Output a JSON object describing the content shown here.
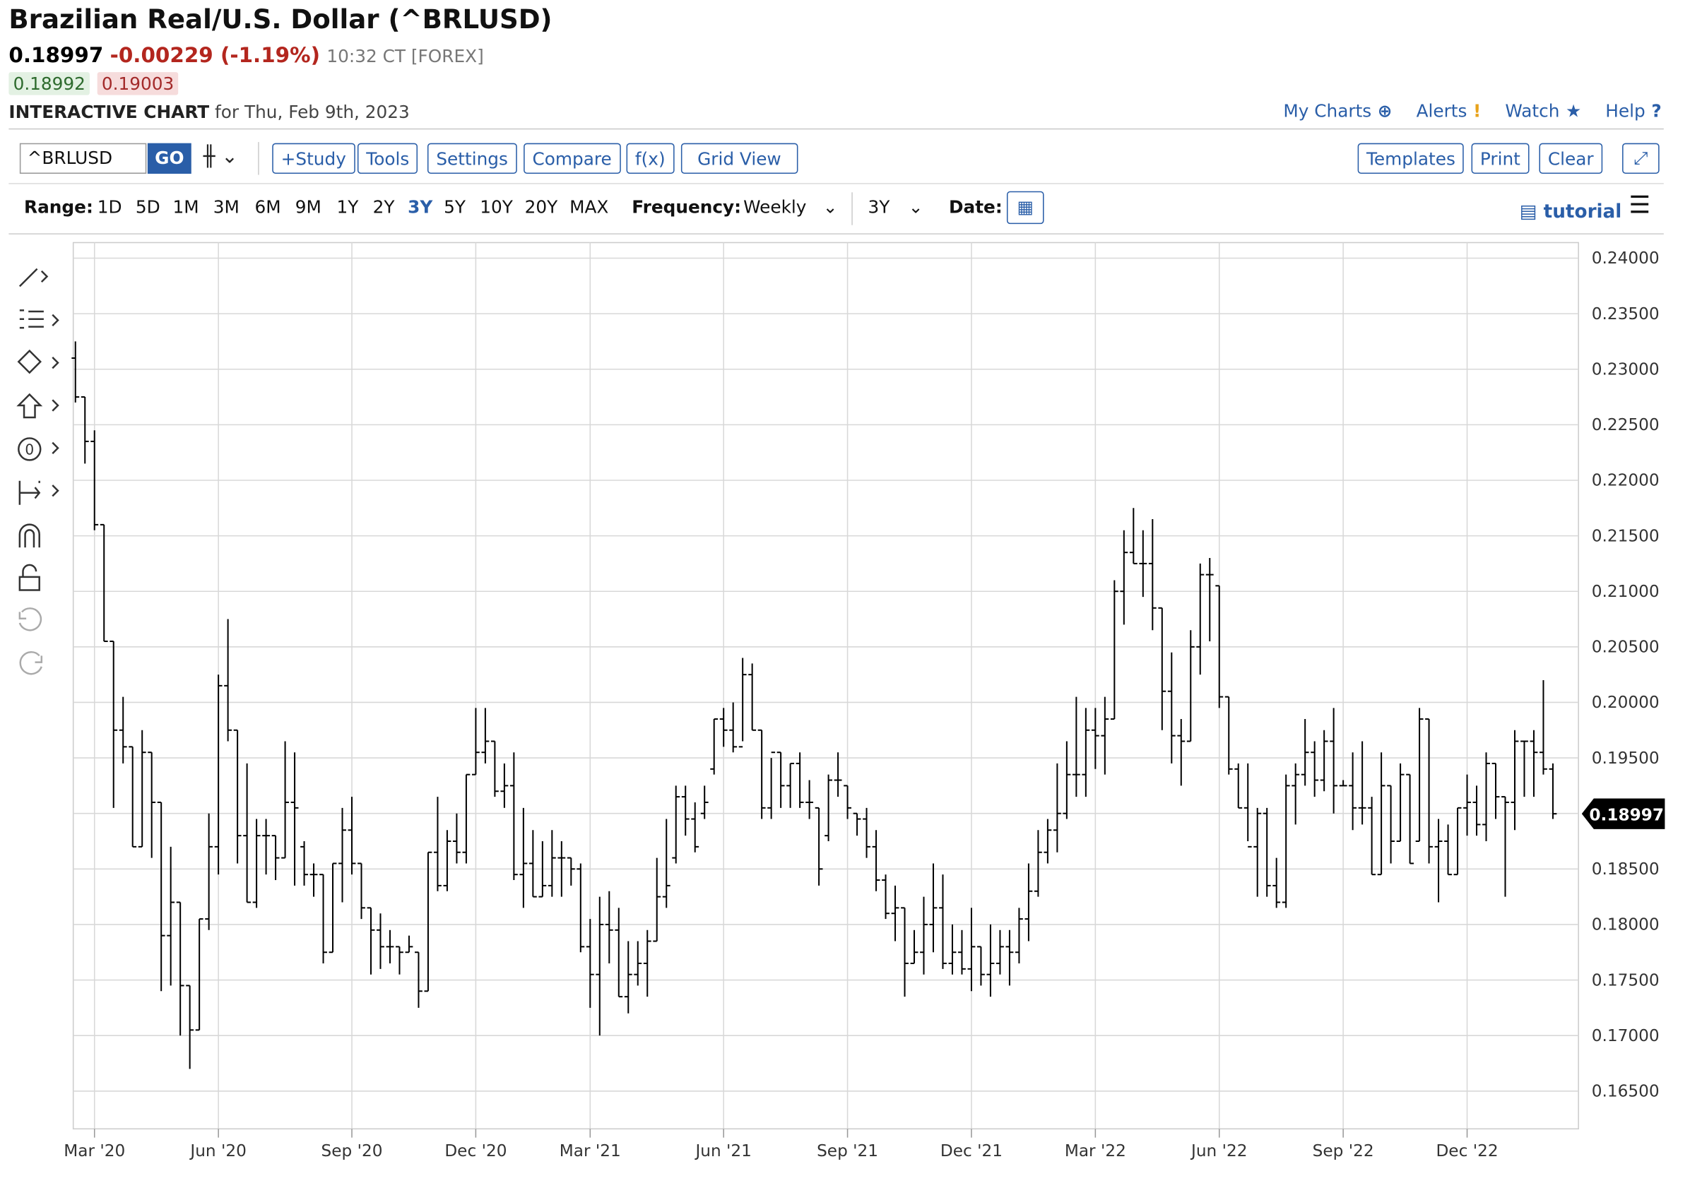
{
  "header": {
    "title": "Brazilian Real/U.S. Dollar (^BRLUSD)",
    "last": "0.18997",
    "change": "-0.00229 (-1.19%)",
    "time": "10:32 CT [FOREX]",
    "bid": "0.18992",
    "ask": "0.19003",
    "chart_label": "INTERACTIVE CHART",
    "chart_date": "for Thu, Feb 9th, 2023"
  },
  "nav": [
    "My Charts",
    "Alerts",
    "Watch",
    "Help"
  ],
  "toolbar": {
    "symbol": "^BRLUSD",
    "go": "GO",
    "buttons": [
      "+Study",
      "Tools",
      "Settings",
      "Compare",
      "f(x)",
      "Grid View"
    ],
    "right_buttons": [
      "Templates",
      "Print",
      "Clear"
    ]
  },
  "range_bar": {
    "range_label": "Range:",
    "ranges": [
      "1D",
      "5D",
      "1M",
      "3M",
      "6M",
      "9M",
      "1Y",
      "2Y",
      "3Y",
      "5Y",
      "10Y",
      "20Y",
      "MAX"
    ],
    "selected_range": 8,
    "frequency_label": "Frequency:",
    "frequency": "Weekly",
    "period": "3Y",
    "date_label": "Date:",
    "tutorial": "tutorial"
  },
  "chart_data": {
    "type": "ohlc",
    "color": "#000000",
    "grid": true,
    "categories": [
      null,
      null,
      "Mar '20",
      null,
      null,
      null,
      null,
      null,
      null,
      null,
      null,
      null,
      null,
      null,
      null,
      "Jun '20",
      null,
      null,
      null,
      null,
      null,
      null,
      null,
      null,
      null,
      null,
      null,
      null,
      null,
      "Sep '20",
      null,
      null,
      null,
      null,
      null,
      null,
      null,
      null,
      null,
      null,
      null,
      null,
      "Dec '20",
      null,
      null,
      null,
      null,
      null,
      null,
      null,
      null,
      null,
      null,
      null,
      "Mar '21",
      null,
      null,
      null,
      null,
      null,
      null,
      null,
      null,
      null,
      null,
      null,
      null,
      null,
      "Jun '21",
      null,
      null,
      null,
      null,
      null,
      null,
      null,
      null,
      null,
      null,
      null,
      null,
      "Sep '21",
      null,
      null,
      null,
      null,
      null,
      null,
      null,
      null,
      null,
      null,
      null,
      null,
      "Dec '21",
      null,
      null,
      null,
      null,
      null,
      null,
      null,
      null,
      null,
      null,
      null,
      null,
      "Mar '22",
      null,
      null,
      null,
      null,
      null,
      null,
      null,
      null,
      null,
      null,
      null,
      null,
      "Jun '22",
      null,
      null,
      null,
      null,
      null,
      null,
      null,
      null,
      null,
      null,
      null,
      null,
      "Sep '22",
      null,
      null,
      null,
      null,
      null,
      null,
      null,
      null,
      null,
      null,
      null,
      null,
      "Dec '22",
      null,
      null,
      null,
      null,
      null,
      null,
      null,
      null,
      null
    ],
    "open": [
      0.231,
      0.2275,
      0.2235,
      0.216,
      0.2055,
      0.1975,
      0.196,
      0.187,
      0.1955,
      0.191,
      0.179,
      0.182,
      0.1745,
      0.1705,
      0.1805,
      0.187,
      0.2015,
      0.1975,
      0.188,
      0.182,
      0.188,
      0.188,
      0.186,
      0.191,
      0.187,
      0.1845,
      0.1845,
      0.1775,
      0.1855,
      0.1885,
      0.1855,
      0.1815,
      0.1795,
      0.178,
      0.178,
      0.1775,
      0.1775,
      0.174,
      0.1865,
      0.1835,
      0.1875,
      0.1865,
      0.1935,
      0.1955,
      0.1965,
      0.192,
      0.1925,
      0.1845,
      0.1855,
      0.1825,
      0.1835,
      0.186,
      0.186,
      0.185,
      0.178,
      0.1755,
      0.18,
      0.1795,
      0.1735,
      0.1755,
      0.1765,
      0.1785,
      0.1825,
      0.186,
      0.1915,
      0.1895,
      0.19,
      0.194,
      0.1985,
      0.1975,
      0.196,
      0.2025,
      0.1975,
      0.1905,
      0.1955,
      0.1925,
      0.1945,
      0.191,
      0.1905,
      0.188,
      0.193,
      0.1925,
      0.19,
      0.1895,
      0.187,
      0.184,
      0.181,
      0.1815,
      0.1765,
      0.1775,
      0.18,
      0.1815,
      0.1765,
      0.1775,
      0.176,
      0.178,
      0.1755,
      0.1765,
      0.178,
      0.1775,
      0.1805,
      0.183,
      0.1865,
      0.1885,
      0.19,
      0.1935,
      0.1935,
      0.1975,
      0.197,
      0.1985,
      0.21,
      0.2135,
      0.2125,
      0.2125,
      0.2085,
      0.201,
      0.197,
      0.1965,
      0.205,
      0.2115,
      0.2105,
      0.2005,
      0.194,
      0.1905,
      0.187,
      0.19,
      0.1835,
      0.182,
      0.1925,
      0.1935,
      0.1955,
      0.193,
      0.1965,
      0.1925,
      0.1925,
      0.1905,
      0.1905,
      0.1845,
      0.1925,
      0.1875,
      0.1935,
      0.1875,
      0.1985,
      0.187,
      0.1875,
      0.1845,
      0.1905,
      0.191,
      0.189,
      0.1945,
      0.1915,
      0.191,
      0.1965,
      0.1965,
      0.1955,
      0.194
    ],
    "high": [
      0.2325,
      0.2275,
      0.2245,
      0.216,
      0.2055,
      0.2005,
      0.196,
      0.1975,
      0.1955,
      0.191,
      0.187,
      0.182,
      0.1745,
      0.1805,
      0.19,
      0.2025,
      0.2075,
      0.1975,
      0.1945,
      0.1895,
      0.1895,
      0.188,
      0.1965,
      0.1955,
      0.1875,
      0.1855,
      0.1845,
      0.1855,
      0.1905,
      0.1915,
      0.1855,
      0.1815,
      0.181,
      0.1795,
      0.178,
      0.179,
      0.1775,
      0.1865,
      0.1915,
      0.1885,
      0.19,
      0.1935,
      0.1995,
      0.1995,
      0.1965,
      0.1945,
      0.1955,
      0.1905,
      0.1885,
      0.1875,
      0.1885,
      0.1875,
      0.186,
      0.1855,
      0.1805,
      0.1825,
      0.183,
      0.1815,
      0.1785,
      0.1785,
      0.1795,
      0.186,
      0.1895,
      0.1925,
      0.1925,
      0.191,
      0.1925,
      0.1985,
      0.1995,
      0.2,
      0.204,
      0.2035,
      0.1975,
      0.195,
      0.1955,
      0.1945,
      0.1955,
      0.193,
      0.1905,
      0.1935,
      0.1955,
      0.1925,
      0.19,
      0.1905,
      0.1885,
      0.1845,
      0.1835,
      0.1815,
      0.1795,
      0.1825,
      0.1855,
      0.1845,
      0.18,
      0.1795,
      0.1815,
      0.178,
      0.18,
      0.1795,
      0.1795,
      0.1815,
      0.1855,
      0.1885,
      0.1895,
      0.1945,
      0.1965,
      0.2005,
      0.1995,
      0.1995,
      0.2005,
      0.211,
      0.2155,
      0.2175,
      0.2155,
      0.2165,
      0.2085,
      0.2045,
      0.1985,
      0.2065,
      0.2125,
      0.213,
      0.2105,
      0.2005,
      0.1945,
      0.1945,
      0.1905,
      0.1905,
      0.186,
      0.1935,
      0.1945,
      0.1985,
      0.1965,
      0.1975,
      0.1995,
      0.193,
      0.1955,
      0.1965,
      0.1915,
      0.1955,
      0.1925,
      0.1945,
      0.1935,
      0.1995,
      0.1985,
      0.1895,
      0.189,
      0.1905,
      0.1935,
      0.1925,
      0.1955,
      0.1945,
      0.1915,
      0.1975,
      0.1965,
      0.1975,
      0.202,
      0.1945
    ],
    "low": [
      0.227,
      0.2215,
      0.2155,
      0.2055,
      0.1905,
      0.1945,
      0.187,
      0.187,
      0.186,
      0.174,
      0.1745,
      0.17,
      0.167,
      0.1705,
      0.1795,
      0.1845,
      0.1965,
      0.1855,
      0.182,
      0.1815,
      0.1845,
      0.184,
      0.186,
      0.1835,
      0.1835,
      0.1825,
      0.1765,
      0.1775,
      0.182,
      0.1845,
      0.1805,
      0.1755,
      0.176,
      0.1765,
      0.1755,
      0.1775,
      0.1725,
      0.174,
      0.183,
      0.183,
      0.1855,
      0.1855,
      0.1935,
      0.1945,
      0.1915,
      0.1905,
      0.184,
      0.1815,
      0.1825,
      0.1825,
      0.1825,
      0.1825,
      0.1835,
      0.1775,
      0.1725,
      0.17,
      0.1765,
      0.1735,
      0.172,
      0.1745,
      0.1735,
      0.1785,
      0.1815,
      0.1855,
      0.188,
      0.1865,
      0.1895,
      0.1935,
      0.196,
      0.1955,
      0.1965,
      0.1975,
      0.1895,
      0.1895,
      0.1905,
      0.1905,
      0.1905,
      0.1895,
      0.1835,
      0.1875,
      0.1915,
      0.1895,
      0.188,
      0.186,
      0.183,
      0.1805,
      0.1785,
      0.1735,
      0.1765,
      0.1755,
      0.1775,
      0.176,
      0.1755,
      0.1755,
      0.174,
      0.1745,
      0.1735,
      0.1755,
      0.1745,
      0.1765,
      0.1785,
      0.1825,
      0.1855,
      0.1865,
      0.1895,
      0.1915,
      0.1915,
      0.194,
      0.1935,
      0.1985,
      0.207,
      0.2125,
      0.2095,
      0.2065,
      0.1975,
      0.1945,
      0.1925,
      0.1965,
      0.2025,
      0.2055,
      0.1995,
      0.1935,
      0.1905,
      0.1875,
      0.1825,
      0.1825,
      0.1815,
      0.1815,
      0.189,
      0.1925,
      0.1915,
      0.192,
      0.19,
      0.1925,
      0.1885,
      0.189,
      0.1845,
      0.1845,
      0.1855,
      0.1875,
      0.1855,
      0.1875,
      0.1855,
      0.182,
      0.1845,
      0.1845,
      0.188,
      0.188,
      0.1875,
      0.1895,
      0.1825,
      0.1885,
      0.1915,
      0.1915,
      0.1935,
      0.1895
    ],
    "close": [
      0.2275,
      0.2235,
      0.216,
      0.2055,
      0.1975,
      0.196,
      0.187,
      0.1955,
      0.191,
      0.179,
      0.182,
      0.1745,
      0.1705,
      0.1805,
      0.187,
      0.2015,
      0.1975,
      0.188,
      0.182,
      0.188,
      0.188,
      0.186,
      0.191,
      0.1905,
      0.1845,
      0.1845,
      0.1775,
      0.1855,
      0.1885,
      0.1855,
      0.1815,
      0.1795,
      0.178,
      0.178,
      0.1775,
      0.178,
      0.174,
      0.1865,
      0.1835,
      0.1875,
      0.1865,
      0.1935,
      0.1955,
      0.1965,
      0.192,
      0.1925,
      0.1845,
      0.1855,
      0.1825,
      0.1835,
      0.186,
      0.186,
      0.185,
      0.178,
      0.1755,
      0.18,
      0.1795,
      0.1735,
      0.1755,
      0.1765,
      0.1785,
      0.1825,
      0.1835,
      0.1915,
      0.1895,
      0.187,
      0.191,
      0.1985,
      0.1975,
      0.196,
      0.2025,
      0.1975,
      0.1905,
      0.1955,
      0.1925,
      0.1945,
      0.191,
      0.191,
      0.185,
      0.193,
      0.193,
      0.1905,
      0.1895,
      0.187,
      0.184,
      0.181,
      0.1815,
      0.1765,
      0.1775,
      0.18,
      0.1815,
      0.1765,
      0.1775,
      0.176,
      0.178,
      0.1755,
      0.1765,
      0.178,
      0.1775,
      0.1805,
      0.183,
      0.1865,
      0.1885,
      0.19,
      0.1935,
      0.1935,
      0.1975,
      0.197,
      0.1985,
      0.21,
      0.2135,
      0.2125,
      0.2125,
      0.2085,
      0.201,
      0.197,
      0.1965,
      0.205,
      0.2115,
      0.2115,
      0.2005,
      0.194,
      0.1905,
      0.187,
      0.19,
      0.1835,
      0.182,
      0.1925,
      0.1935,
      0.1955,
      0.193,
      0.1965,
      0.1925,
      0.1925,
      0.1905,
      0.1905,
      0.1845,
      0.1925,
      0.1875,
      0.1935,
      0.1855,
      0.1985,
      0.187,
      0.1875,
      0.1845,
      0.1905,
      0.191,
      0.189,
      0.1945,
      0.1915,
      0.191,
      0.1965,
      0.1965,
      0.1955,
      0.194,
      0.18997
    ],
    "ylim": [
      0.1616,
      0.2414
    ],
    "yticks": [
      {
        "value": 0.165,
        "label": "0.16500"
      },
      {
        "value": 0.17,
        "label": "0.17000"
      },
      {
        "value": 0.175,
        "label": "0.17500"
      },
      {
        "value": 0.18,
        "label": "0.18000"
      },
      {
        "value": 0.185,
        "label": "0.18500"
      },
      {
        "value": 0.19,
        "label": "0.19000"
      },
      {
        "value": 0.195,
        "label": "0.19500"
      },
      {
        "value": 0.2,
        "label": "0.20000"
      },
      {
        "value": 0.205,
        "label": "0.20500"
      },
      {
        "value": 0.21,
        "label": "0.21000"
      },
      {
        "value": 0.215,
        "label": "0.21500"
      },
      {
        "value": 0.22,
        "label": "0.22000"
      },
      {
        "value": 0.225,
        "label": "0.22500"
      },
      {
        "value": 0.23,
        "label": "0.23000"
      },
      {
        "value": 0.235,
        "label": "0.23500"
      },
      {
        "value": 0.24,
        "label": "0.24000"
      }
    ]
  }
}
